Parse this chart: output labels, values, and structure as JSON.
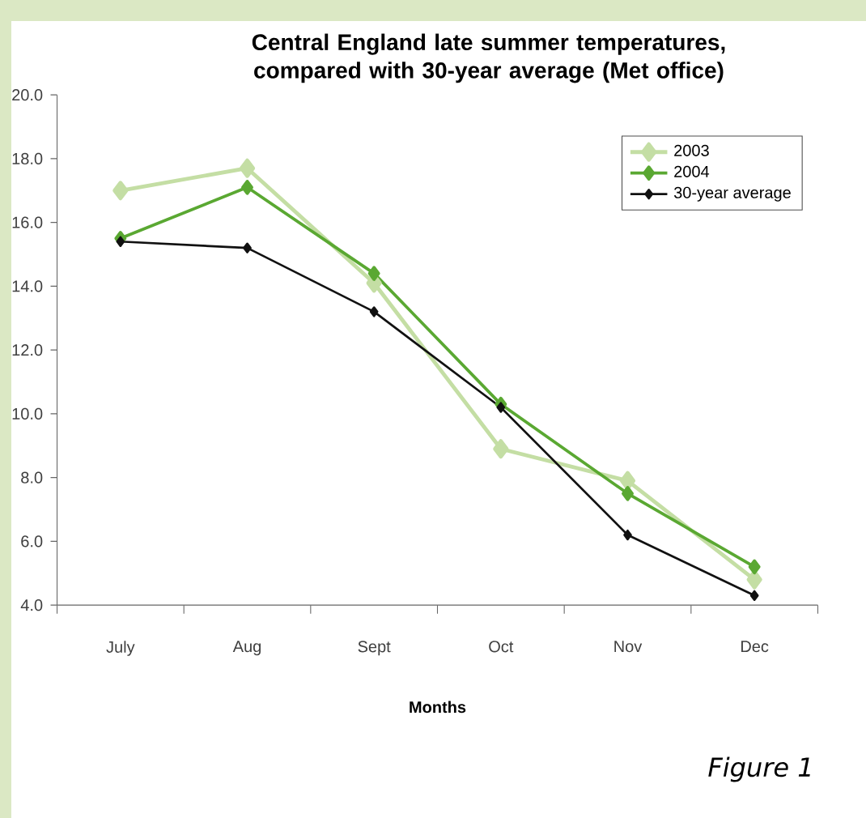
{
  "chart_data": {
    "type": "line",
    "title": "Central England late summer temperatures, compared with 30-year average (Met office)",
    "xlabel": "Months",
    "categories": [
      "July",
      "Aug",
      "Sept",
      "Oct",
      "Nov",
      "Dec"
    ],
    "series": [
      {
        "name": "2003",
        "color": "#c4dea4",
        "values": [
          17.0,
          17.7,
          14.1,
          8.9,
          7.9,
          4.8
        ]
      },
      {
        "name": "2004",
        "color": "#5aa832",
        "values": [
          15.5,
          17.1,
          14.4,
          10.3,
          7.5,
          5.2
        ]
      },
      {
        "name": "30-year average",
        "color": "#111111",
        "values": [
          15.4,
          15.2,
          13.2,
          10.2,
          6.2,
          4.3
        ]
      }
    ],
    "ylim": [
      4,
      20
    ],
    "yticks": [
      {
        "value": 4,
        "label": "4.0"
      },
      {
        "value": 6,
        "label": "6.0"
      },
      {
        "value": 8,
        "label": "8.0"
      },
      {
        "value": 10,
        "label": "10.0"
      },
      {
        "value": 12,
        "label": "12.0"
      },
      {
        "value": 14,
        "label": "14.0"
      },
      {
        "value": 16,
        "label": "16.0"
      },
      {
        "value": 18,
        "label": "18.0"
      },
      {
        "value": 20,
        "label": "20.0"
      }
    ],
    "annotations": [
      "Figure 1"
    ],
    "legend": "top right",
    "grid": false,
    "marker": "diamond",
    "line_style": "solid"
  }
}
